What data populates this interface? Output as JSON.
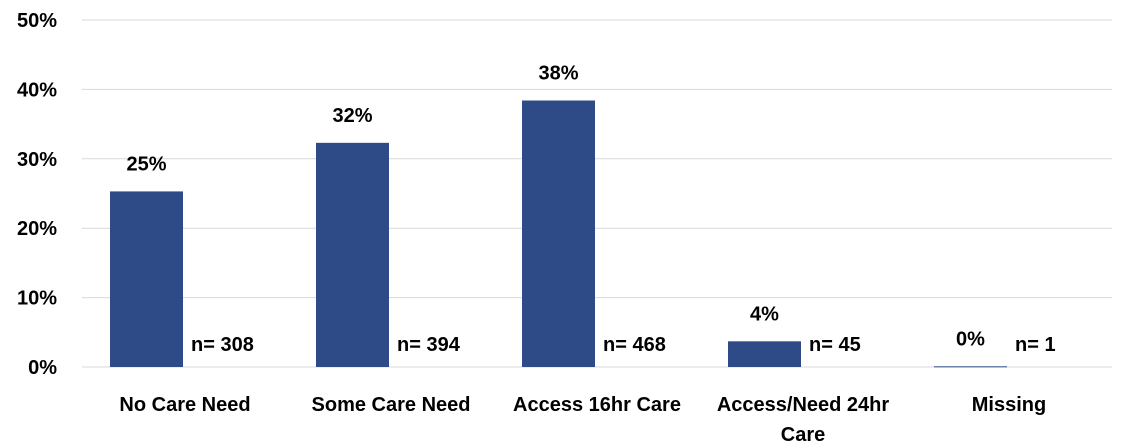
{
  "chart_data": {
    "type": "bar",
    "categories": [
      "No Care Need",
      "Some Care Need",
      "Access 16hr Care",
      "Access/Need 24hr Care",
      "Missing"
    ],
    "category_lines": [
      [
        "No Care Need"
      ],
      [
        "Some Care Need"
      ],
      [
        "Access 16hr Care"
      ],
      [
        "Access/Need 24hr",
        "Care"
      ],
      [
        "Missing"
      ]
    ],
    "values": [
      25.3,
      32.3,
      38.4,
      3.7,
      0.1
    ],
    "data_labels": [
      "25%",
      "32%",
      "38%",
      "4%",
      "0%"
    ],
    "n_labels": [
      "n= 308",
      "n= 394",
      "n= 468",
      "n= 45",
      "n= 1"
    ],
    "yticks": [
      0,
      10,
      20,
      30,
      40,
      50
    ],
    "ytick_labels": [
      "0%",
      "10%",
      "20%",
      "30%",
      "40%",
      "50%"
    ],
    "ylim": [
      0,
      50
    ],
    "grid": true,
    "bar_color": "#2e4a87",
    "title": "",
    "xlabel": "",
    "ylabel": ""
  }
}
